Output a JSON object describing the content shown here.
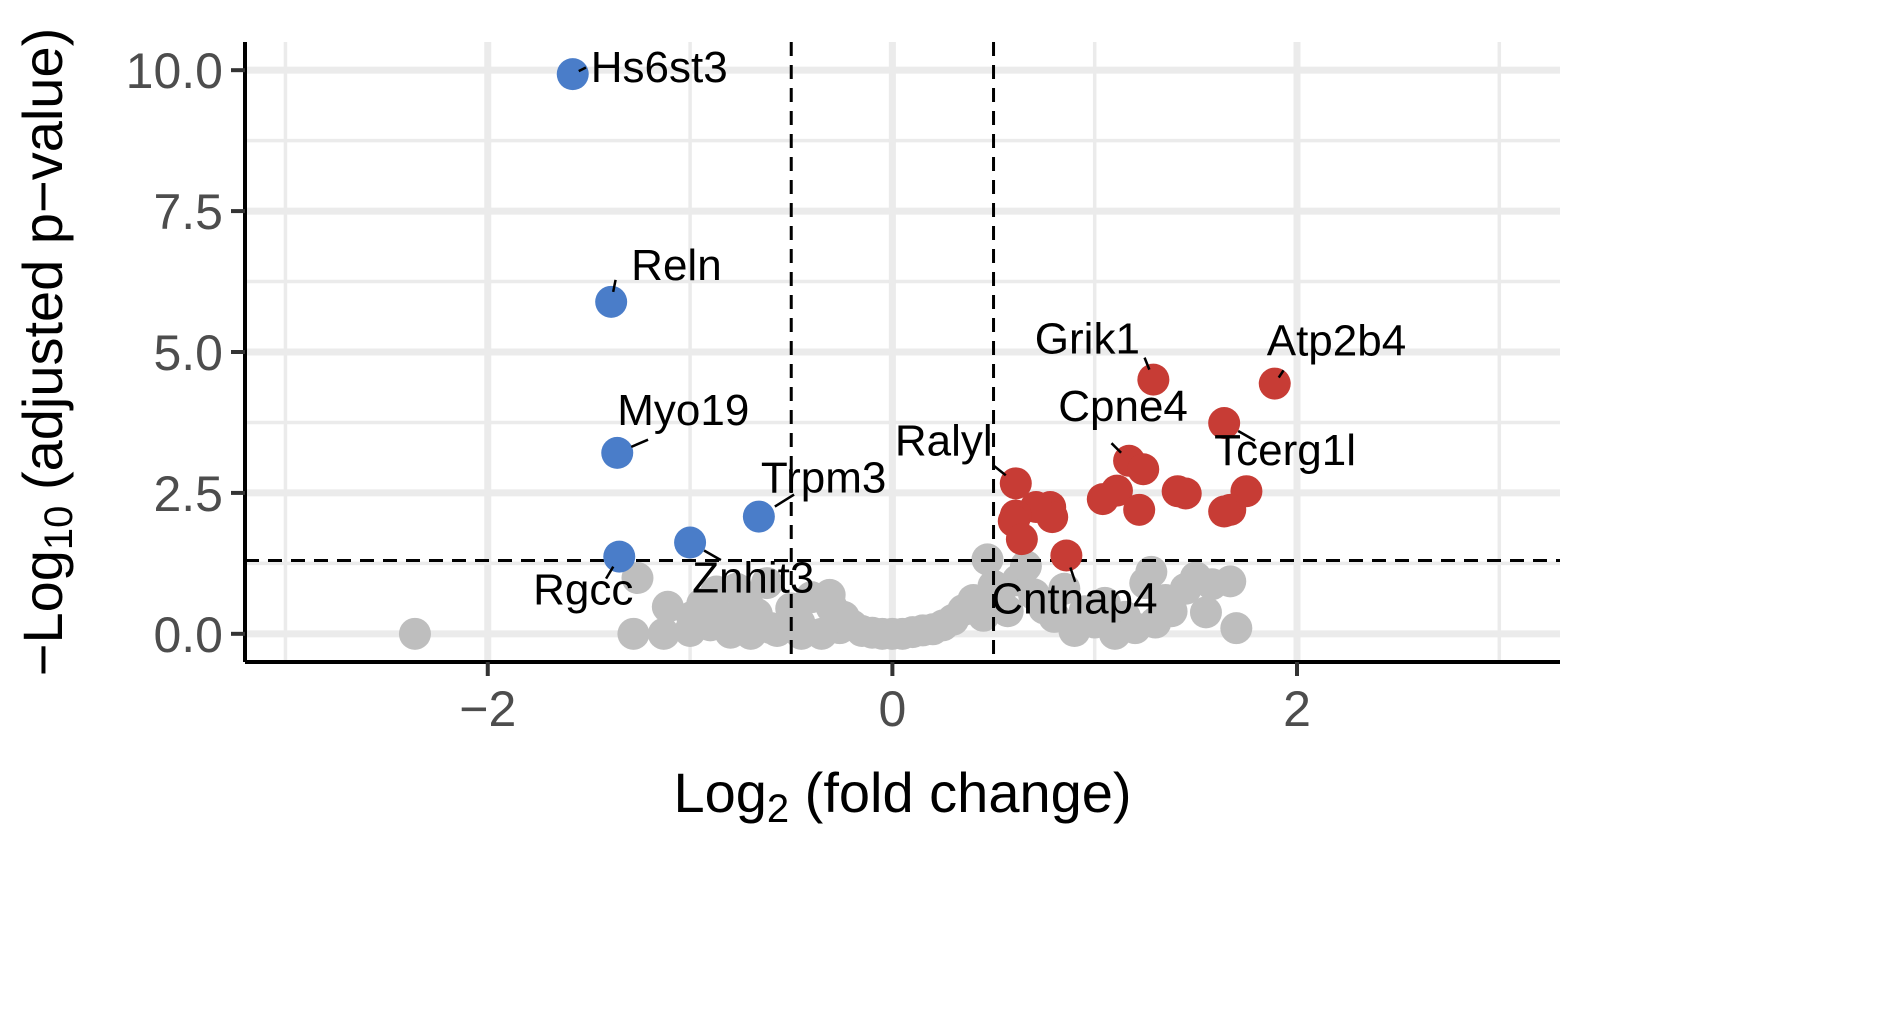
{
  "chart_data": {
    "type": "scatter",
    "title": "",
    "xlabel": {
      "base": "Log",
      "sub": "2",
      "rest": " (fold change)"
    },
    "ylabel": {
      "base": "−Log",
      "sub": "10",
      "rest": " (adjusted p−value)"
    },
    "xlim": [
      -3.2,
      3.3
    ],
    "ylim": [
      -0.5,
      10.5
    ],
    "x_ticks": [
      {
        "value": -2,
        "label": "−2"
      },
      {
        "value": 0,
        "label": "0"
      },
      {
        "value": 2,
        "label": "2"
      }
    ],
    "y_ticks": [
      {
        "value": 0,
        "label": "0.0"
      },
      {
        "value": 2.5,
        "label": "2.5"
      },
      {
        "value": 5,
        "label": "5.0"
      },
      {
        "value": 7.5,
        "label": "7.5"
      },
      {
        "value": 10,
        "label": "10.0"
      }
    ],
    "grid": true,
    "thresholds": {
      "fold_change": [
        -0.5,
        0.5
      ],
      "p_value": 1.3
    },
    "colors": {
      "down": "#4a7dc9",
      "up": "#c73c35",
      "ns": "#bebebe"
    },
    "series": [
      {
        "group": "down",
        "points": [
          [
            -1.58,
            9.93
          ],
          [
            -1.39,
            5.89
          ],
          [
            -1.36,
            3.21
          ],
          [
            -0.66,
            2.08
          ],
          [
            -1.0,
            1.62
          ],
          [
            -1.35,
            1.37
          ]
        ]
      },
      {
        "group": "up",
        "points": [
          [
            1.29,
            4.51
          ],
          [
            1.89,
            4.44
          ],
          [
            1.64,
            3.74
          ],
          [
            1.17,
            3.07
          ],
          [
            1.24,
            2.92
          ],
          [
            0.61,
            2.67
          ],
          [
            1.41,
            2.53
          ],
          [
            1.45,
            2.49
          ],
          [
            1.75,
            2.53
          ],
          [
            1.67,
            2.2
          ],
          [
            1.64,
            2.17
          ],
          [
            1.11,
            2.54
          ],
          [
            1.04,
            2.39
          ],
          [
            1.22,
            2.2
          ],
          [
            0.78,
            2.25
          ],
          [
            0.79,
            2.07
          ],
          [
            0.71,
            2.25
          ],
          [
            0.61,
            2.1
          ],
          [
            0.6,
            2.0
          ],
          [
            0.64,
            1.68
          ],
          [
            0.86,
            1.39
          ]
        ]
      },
      {
        "group": "ns",
        "points": [
          [
            -2.36,
            0.0
          ],
          [
            -1.26,
            0.99
          ],
          [
            -1.28,
            0.0
          ],
          [
            -1.13,
            0.0
          ],
          [
            -1.11,
            0.48
          ],
          [
            -0.99,
            0.3
          ],
          [
            -0.94,
            0.53
          ],
          [
            -0.87,
            0.75
          ],
          [
            -0.82,
            0.28
          ],
          [
            -0.77,
            0.8
          ],
          [
            -0.72,
            0.6
          ],
          [
            -0.67,
            0.35
          ],
          [
            -0.62,
            0.9
          ],
          [
            -0.57,
            0.05
          ],
          [
            -0.5,
            0.45
          ],
          [
            -0.46,
            0.2
          ],
          [
            -0.4,
            0.65
          ],
          [
            -0.31,
            0.69
          ],
          [
            -0.3,
            0.47
          ],
          [
            -0.26,
            0.1
          ],
          [
            -0.24,
            0.3
          ],
          [
            -0.2,
            0.15
          ],
          [
            -0.15,
            0.05
          ],
          [
            -0.1,
            0.02
          ],
          [
            -0.05,
            0.0
          ],
          [
            0.0,
            0.0
          ],
          [
            0.05,
            0.0
          ],
          [
            0.1,
            0.03
          ],
          [
            0.15,
            0.06
          ],
          [
            0.2,
            0.08
          ],
          [
            0.25,
            0.15
          ],
          [
            0.3,
            0.25
          ],
          [
            0.35,
            0.42
          ],
          [
            0.4,
            0.6
          ],
          [
            0.45,
            0.32
          ],
          [
            0.47,
            1.32
          ],
          [
            0.5,
            0.85
          ],
          [
            0.53,
            0.62
          ],
          [
            0.57,
            0.4
          ],
          [
            0.62,
            0.95
          ],
          [
            0.66,
            1.2
          ],
          [
            0.7,
            0.7
          ],
          [
            0.75,
            0.45
          ],
          [
            0.8,
            0.3
          ],
          [
            0.85,
            0.8
          ],
          [
            0.9,
            0.05
          ],
          [
            0.95,
            0.4
          ],
          [
            1.0,
            0.2
          ],
          [
            1.05,
            0.55
          ],
          [
            1.1,
            0.0
          ],
          [
            1.15,
            0.3
          ],
          [
            1.2,
            0.1
          ],
          [
            1.25,
            0.9
          ],
          [
            1.28,
            1.1
          ],
          [
            1.3,
            0.2
          ],
          [
            1.35,
            0.6
          ],
          [
            1.38,
            0.4
          ],
          [
            1.45,
            0.8
          ],
          [
            1.5,
            1.0
          ],
          [
            1.55,
            0.38
          ],
          [
            1.58,
            0.88
          ],
          [
            1.67,
            0.93
          ],
          [
            1.7,
            0.1
          ],
          [
            -0.6,
            0.1
          ],
          [
            -0.8,
            0.02
          ],
          [
            -1.0,
            0.05
          ],
          [
            -0.9,
            0.15
          ],
          [
            -0.7,
            0.0
          ],
          [
            -0.45,
            0.0
          ],
          [
            -0.35,
            0.0
          ]
        ]
      }
    ],
    "labels": [
      {
        "text": "Hs6st3",
        "x": -1.58,
        "y": 9.93
      },
      {
        "text": "Reln",
        "x": -1.39,
        "y": 5.89
      },
      {
        "text": "Myo19",
        "x": -1.36,
        "y": 3.21
      },
      {
        "text": "Trpm3",
        "x": -0.66,
        "y": 2.08
      },
      {
        "text": "Znhit3",
        "x": -1.0,
        "y": 1.62
      },
      {
        "text": "Rgcc",
        "x": -1.35,
        "y": 1.37
      },
      {
        "text": "Grik1",
        "x": 1.29,
        "y": 4.51
      },
      {
        "text": "Atp2b4",
        "x": 1.89,
        "y": 4.44
      },
      {
        "text": "Tcerg1l",
        "x": 1.64,
        "y": 3.74
      },
      {
        "text": "Cpne4",
        "x": 1.17,
        "y": 3.07
      },
      {
        "text": "Ralyl",
        "x": 0.61,
        "y": 2.67
      },
      {
        "text": "Cntnap4",
        "x": 0.86,
        "y": 1.39
      }
    ]
  }
}
